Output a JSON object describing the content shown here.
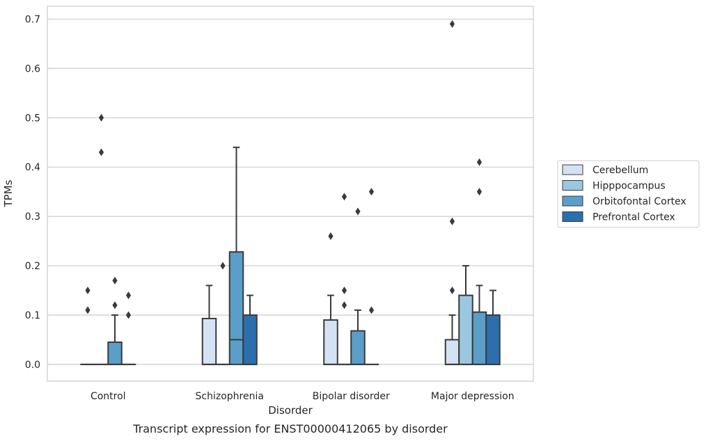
{
  "chart_data": {
    "type": "boxplot",
    "caption": "Transcript expression for ENST00000412065 by disorder",
    "xlabel": "Disorder",
    "ylabel": "TPMs",
    "ylim": [
      -0.034,
      0.726
    ],
    "yticks": [
      0.0,
      0.1,
      0.2,
      0.3,
      0.4,
      0.5,
      0.6,
      0.7
    ],
    "ytick_labels": [
      "0.0",
      "0.1",
      "0.2",
      "0.3",
      "0.4",
      "0.5",
      "0.6",
      "0.7"
    ],
    "grid": true,
    "legend_position": "right",
    "categories": [
      "Control",
      "Schizophrenia",
      "Bipolar disorder",
      "Major depression"
    ],
    "series": [
      {
        "name": "Cerebellum",
        "color": "#d3e3f3",
        "boxes": [
          {
            "q1": 0,
            "median": 0,
            "q3": 0,
            "whisker_low": 0,
            "whisker_high": 0,
            "outliers": [
              0.11,
              0.15
            ]
          },
          {
            "q1": 0,
            "median": 0,
            "q3": 0.093,
            "whisker_low": 0,
            "whisker_high": 0.16,
            "outliers": []
          },
          {
            "q1": 0,
            "median": 0,
            "q3": 0.09,
            "whisker_low": 0,
            "whisker_high": 0.14,
            "outliers": [
              0.26
            ]
          },
          {
            "q1": 0,
            "median": 0,
            "q3": 0.05,
            "whisker_low": 0,
            "whisker_high": 0.1,
            "outliers": [
              0.15,
              0.29,
              0.69
            ]
          }
        ]
      },
      {
        "name": "Hipppocampus",
        "color": "#9ac8e0",
        "boxes": [
          {
            "q1": 0,
            "median": 0,
            "q3": 0,
            "whisker_low": 0,
            "whisker_high": 0,
            "outliers": [
              0.43,
              0.5
            ]
          },
          {
            "q1": 0,
            "median": 0,
            "q3": 0,
            "whisker_low": 0,
            "whisker_high": 0,
            "outliers": [
              0.2
            ]
          },
          {
            "q1": 0,
            "median": 0,
            "q3": 0,
            "whisker_low": 0,
            "whisker_high": 0,
            "outliers": [
              0.12,
              0.15,
              0.34
            ]
          },
          {
            "q1": 0,
            "median": 0,
            "q3": 0.14,
            "whisker_low": 0,
            "whisker_high": 0.2,
            "outliers": []
          }
        ]
      },
      {
        "name": "Orbitofontal Cortex",
        "color": "#5a9ec9",
        "boxes": [
          {
            "q1": 0,
            "median": 0,
            "q3": 0.045,
            "whisker_low": 0,
            "whisker_high": 0.1,
            "outliers": [
              0.12,
              0.17
            ]
          },
          {
            "q1": 0,
            "median": 0.05,
            "q3": 0.228,
            "whisker_low": 0,
            "whisker_high": 0.44,
            "outliers": []
          },
          {
            "q1": 0,
            "median": 0,
            "q3": 0.068,
            "whisker_low": 0,
            "whisker_high": 0.11,
            "outliers": [
              0.31
            ]
          },
          {
            "q1": 0,
            "median": 0,
            "q3": 0.106,
            "whisker_low": 0,
            "whisker_high": 0.16,
            "outliers": [
              0.35,
              0.41
            ]
          }
        ]
      },
      {
        "name": "Prefrontal Cortex",
        "color": "#2c6fae",
        "boxes": [
          {
            "q1": 0,
            "median": 0,
            "q3": 0,
            "whisker_low": 0,
            "whisker_high": 0,
            "outliers": [
              0.1,
              0.14
            ]
          },
          {
            "q1": 0,
            "median": 0,
            "q3": 0.1,
            "whisker_low": 0,
            "whisker_high": 0.14,
            "outliers": []
          },
          {
            "q1": 0,
            "median": 0,
            "q3": 0,
            "whisker_low": 0,
            "whisker_high": 0,
            "outliers": [
              0.11,
              0.35
            ]
          },
          {
            "q1": 0,
            "median": 0,
            "q3": 0.1,
            "whisker_low": 0,
            "whisker_high": 0.15,
            "outliers": []
          }
        ]
      }
    ]
  }
}
